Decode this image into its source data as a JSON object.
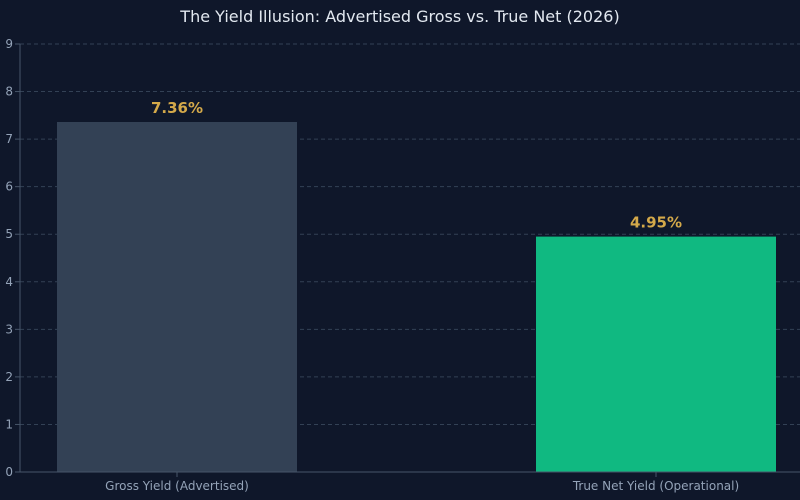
{
  "chart_data": {
    "type": "bar",
    "title": "The Yield Illusion: Advertised Gross vs. True Net (2026)",
    "xlabel": "",
    "ylabel": "",
    "categories": [
      "Gross Yield (Advertised)",
      "True Net Yield (Operational)"
    ],
    "values": [
      7.36,
      4.95
    ],
    "value_labels": [
      "7.36%",
      "4.95%"
    ],
    "ylim": [
      0,
      9
    ],
    "yticks": [
      0,
      1,
      2,
      3,
      4,
      5,
      6,
      7,
      8,
      9
    ],
    "grid": true,
    "colors": {
      "background": "#0f172a",
      "bars": [
        "#334155",
        "#10b981"
      ],
      "value_label": "#d4a94a",
      "grid": "#334155",
      "axis": "#475569",
      "text": "#94a3b8",
      "title": "#e2e8f0"
    }
  }
}
